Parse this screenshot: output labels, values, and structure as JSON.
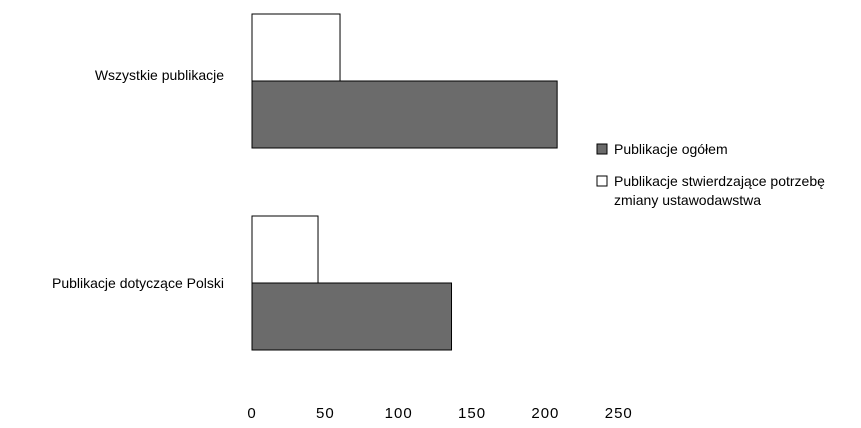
{
  "chart_data": {
    "type": "bar",
    "orientation": "horizontal",
    "categories": [
      "Wszystkie publikacje",
      "Publikacje dotyczące Polski"
    ],
    "series": [
      {
        "name": "Publikacje stwierdzające potrzebę zmiany ustawodawstwa",
        "values": [
          60,
          45
        ],
        "color": "#ffffff"
      },
      {
        "name": "Publikacje ogółem",
        "values": [
          208,
          136
        ],
        "color": "#6b6b6b"
      }
    ],
    "xlim": [
      0,
      250
    ],
    "xticks": [
      "0",
      "50",
      "100",
      "150",
      "200",
      "250"
    ],
    "grid": false,
    "legend_position": "right",
    "legend": [
      {
        "lines": [
          "Publikacje ogółem"
        ],
        "color": "#6b6b6b"
      },
      {
        "lines": [
          "Publikacje stwierdzające potrzebę",
          "zmiany ustawodawstwa"
        ],
        "color": "#ffffff"
      }
    ]
  }
}
